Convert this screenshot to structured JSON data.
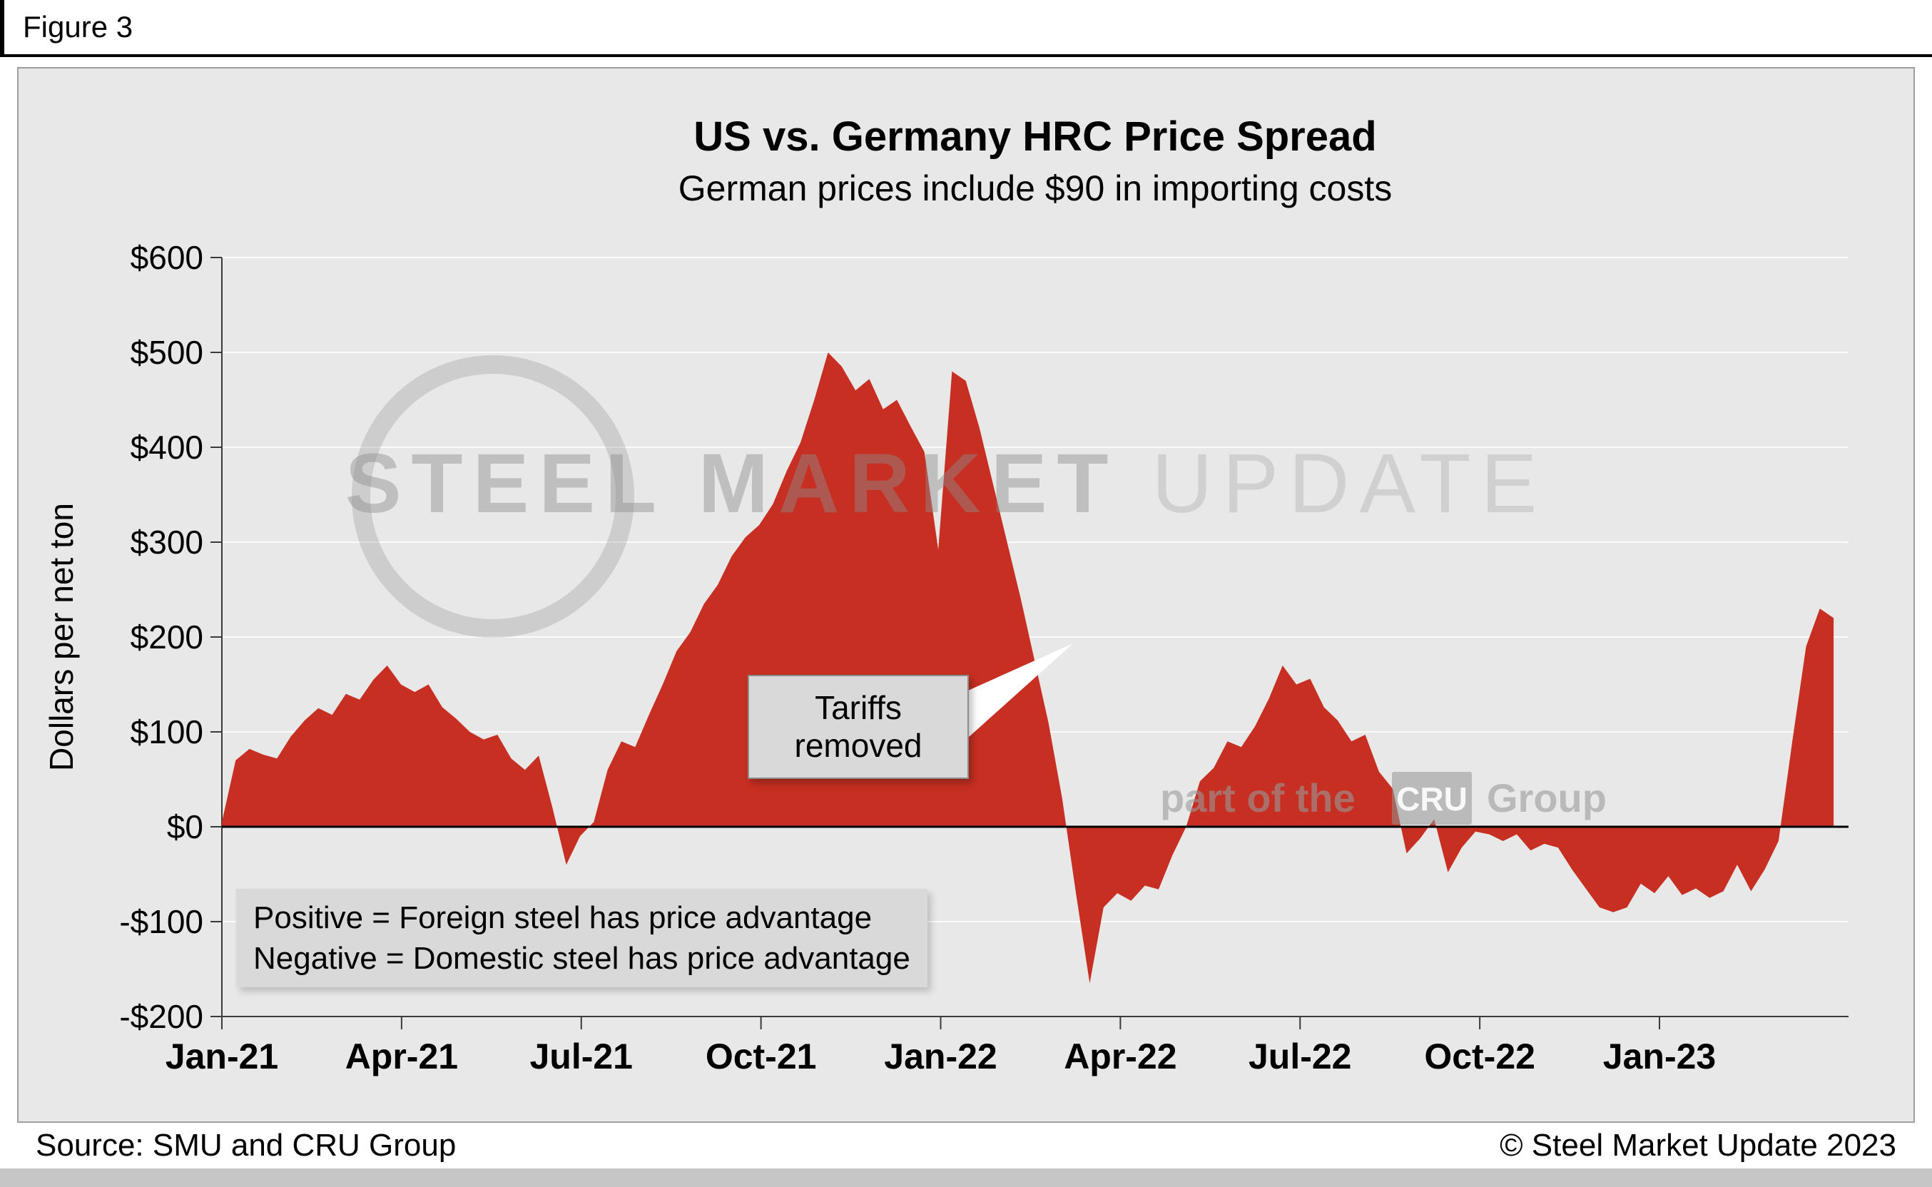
{
  "figure_label": "Figure 3",
  "chart_data": {
    "type": "area",
    "title": "US vs. Germany HRC Price Spread",
    "subtitle": "German prices include $90 in importing costs",
    "ylabel": "Dollars per net ton",
    "unit": "USD per net ton",
    "ylim": [
      -200,
      600
    ],
    "y_tick_step": 100,
    "y_tick_labels": [
      "$600",
      "$500",
      "$400",
      "$300",
      "$200",
      "$100",
      "$0",
      "-$100",
      "-$200"
    ],
    "x_tick_labels": [
      "Jan-21",
      "Apr-21",
      "Jul-21",
      "Oct-21",
      "Jan-22",
      "Apr-22",
      "Jul-22",
      "Oct-22",
      "Jan-23"
    ],
    "x_tick_months": [
      0,
      3,
      6,
      9,
      12,
      15,
      18,
      21,
      24
    ],
    "series_start": "Jan-21",
    "series_interval": "weekly",
    "grid": "horizontal-white",
    "zero_baseline": true,
    "area_color": "#c62f21",
    "values": [
      5,
      70,
      82,
      76,
      72,
      95,
      112,
      125,
      118,
      140,
      134,
      155,
      170,
      150,
      142,
      150,
      126,
      114,
      100,
      92,
      97,
      72,
      60,
      75,
      20,
      -40,
      -10,
      5,
      60,
      90,
      84,
      118,
      150,
      185,
      205,
      235,
      255,
      285,
      305,
      318,
      340,
      375,
      405,
      450,
      500,
      485,
      460,
      472,
      440,
      450,
      422,
      395,
      292,
      480,
      470,
      420,
      360,
      300,
      240,
      175,
      110,
      30,
      -70,
      -165,
      -85,
      -70,
      -78,
      -62,
      -66,
      -30,
      0,
      48,
      62,
      90,
      84,
      106,
      135,
      170,
      150,
      156,
      126,
      112,
      90,
      97,
      58,
      40,
      -28,
      -12,
      8,
      -48,
      -22,
      -5,
      -8,
      -15,
      -8,
      -25,
      -18,
      -22,
      -45,
      -65,
      -85,
      -90,
      -85,
      -60,
      -70,
      -52,
      -72,
      -65,
      -75,
      -68,
      -40,
      -68,
      -45,
      -15,
      90,
      190,
      230,
      220
    ],
    "annotations": {
      "callout": "Tariffs removed",
      "note_line1": "Positive = Foreign steel has price advantage",
      "note_line2": "Negative = Domestic steel has price advantage"
    }
  },
  "watermark": {
    "main_bold": "STEEL MARKET",
    "main_light": "UPDATE",
    "part_of": "part of the",
    "cru": "CRU",
    "group": "Group"
  },
  "footer": {
    "source": "Source: SMU and CRU Group",
    "copyright": "© Steel Market Update 2023"
  }
}
